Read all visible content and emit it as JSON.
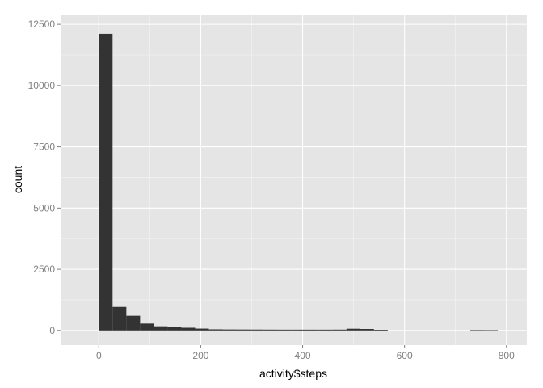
{
  "chart_data": {
    "type": "bar",
    "subtype": "histogram",
    "title": "",
    "xlabel": "activity$steps",
    "ylabel": "count",
    "xlim": [
      -75,
      840
    ],
    "ylim": [
      -600,
      12900
    ],
    "xticks": [
      0,
      200,
      400,
      600,
      800
    ],
    "yticks": [
      0,
      2500,
      5000,
      7500,
      10000,
      12500
    ],
    "grid": true,
    "legend": "none",
    "colors": {
      "panel": "#e5e5e5",
      "grid": "#ffffff",
      "bar": "#333333",
      "tick_text": "#7f7f7f"
    },
    "bins": [
      {
        "x0": 0,
        "x1": 27,
        "count": 12110
      },
      {
        "x0": 27,
        "x1": 54,
        "count": 960
      },
      {
        "x0": 54,
        "x1": 81,
        "count": 600
      },
      {
        "x0": 81,
        "x1": 108,
        "count": 280
      },
      {
        "x0": 108,
        "x1": 135,
        "count": 170
      },
      {
        "x0": 135,
        "x1": 162,
        "count": 140
      },
      {
        "x0": 162,
        "x1": 189,
        "count": 110
      },
      {
        "x0": 189,
        "x1": 216,
        "count": 75
      },
      {
        "x0": 216,
        "x1": 243,
        "count": 45
      },
      {
        "x0": 243,
        "x1": 270,
        "count": 40
      },
      {
        "x0": 270,
        "x1": 297,
        "count": 38
      },
      {
        "x0": 297,
        "x1": 324,
        "count": 36
      },
      {
        "x0": 324,
        "x1": 351,
        "count": 34
      },
      {
        "x0": 351,
        "x1": 378,
        "count": 32
      },
      {
        "x0": 378,
        "x1": 405,
        "count": 32
      },
      {
        "x0": 405,
        "x1": 432,
        "count": 32
      },
      {
        "x0": 432,
        "x1": 459,
        "count": 32
      },
      {
        "x0": 459,
        "x1": 486,
        "count": 34
      },
      {
        "x0": 486,
        "x1": 513,
        "count": 70
      },
      {
        "x0": 513,
        "x1": 540,
        "count": 60
      },
      {
        "x0": 540,
        "x1": 567,
        "count": 25
      },
      {
        "x0": 567,
        "x1": 594,
        "count": 0
      },
      {
        "x0": 594,
        "x1": 621,
        "count": 0
      },
      {
        "x0": 621,
        "x1": 648,
        "count": 0
      },
      {
        "x0": 648,
        "x1": 675,
        "count": 0
      },
      {
        "x0": 675,
        "x1": 702,
        "count": 0
      },
      {
        "x0": 702,
        "x1": 729,
        "count": 0
      },
      {
        "x0": 729,
        "x1": 756,
        "count": 12
      },
      {
        "x0": 756,
        "x1": 783,
        "count": 10
      }
    ]
  }
}
